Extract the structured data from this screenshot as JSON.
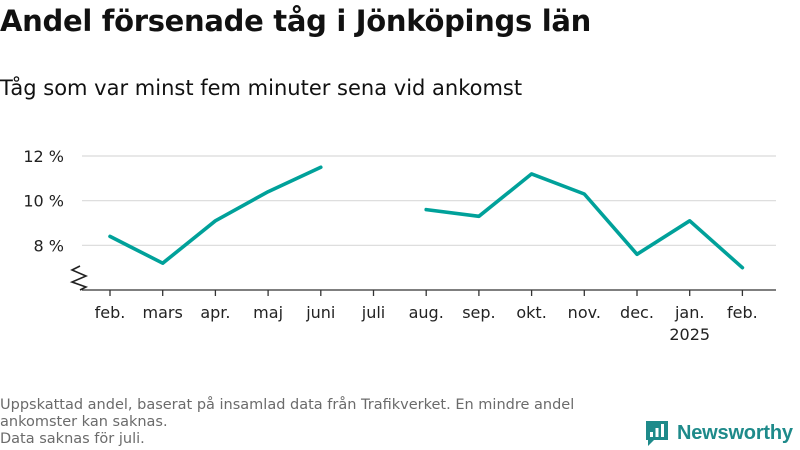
{
  "header": {
    "title": "Andel försenade tåg i Jönköpings län",
    "subtitle": "Tåg som var minst fem minuter sena vid ankomst"
  },
  "chart_data": {
    "type": "line",
    "categories": [
      "feb.",
      "mars",
      "apr.",
      "maj",
      "juni",
      "juli",
      "aug.",
      "sep.",
      "okt.",
      "nov.",
      "dec.",
      "jan.",
      "feb."
    ],
    "year_label": {
      "under_category_index": 11,
      "text": "2025"
    },
    "values": [
      8.4,
      7.2,
      9.1,
      10.4,
      11.5,
      null,
      9.6,
      9.3,
      11.2,
      10.3,
      7.6,
      9.1,
      7.0
    ],
    "y_ticks": [
      8,
      10,
      12
    ],
    "y_tick_labels": [
      "8 %",
      "10 %",
      "12 %"
    ],
    "ylim": [
      6,
      12
    ],
    "axis_break": true,
    "grid": true,
    "line_color": "#00a19a",
    "grid_color": "#d9d9d9"
  },
  "footer": {
    "note_line1": "Uppskattad andel, baserat på insamlad data från Trafikverket. En mindre andel",
    "note_line2": "ankomster kan saknas.",
    "note_line3": "Data saknas för juli.",
    "logo_text": "Newsworthy",
    "logo_icon": "newsworthy-logo-icon",
    "brand_color": "#1e8a8a"
  }
}
